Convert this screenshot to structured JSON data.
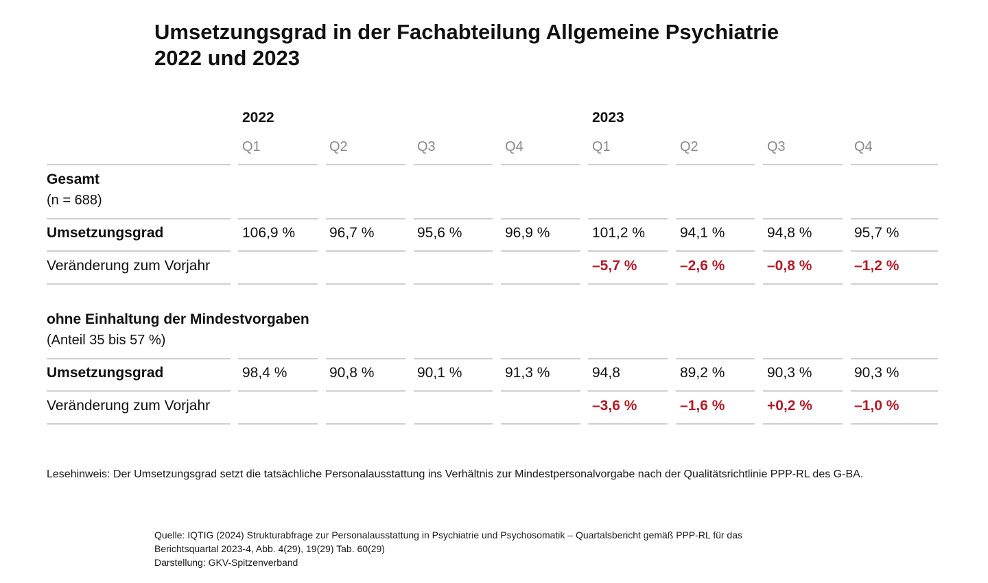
{
  "title_lines": [
    "Umsetzungsgrad in der Fachabteilung Allgemeine Psychiatrie",
    "2022 und 2023"
  ],
  "colors": {
    "negative": "#b01c28",
    "text": "#111111",
    "quarter": "#8a8a8a",
    "rule": "#cfcfcf"
  },
  "chart_data": {
    "type": "table",
    "years": [
      "2022",
      "2023"
    ],
    "quarters": [
      "Q1",
      "Q2",
      "Q3",
      "Q4",
      "Q1",
      "Q2",
      "Q3",
      "Q4"
    ],
    "sections": [
      {
        "title": "Gesamt",
        "subtitle": "(n = 688)",
        "rows": [
          {
            "label": "Umsetzungsgrad",
            "bold": true,
            "values": [
              "106,9 %",
              "96,7 %",
              "95,6 %",
              "96,9 %",
              "101,2 %",
              "94,1 %",
              "94,8 %",
              "95,7 %"
            ]
          },
          {
            "label": "Veränderung zum Vorjahr",
            "bold": false,
            "values": [
              "",
              "",
              "",
              "",
              "–5,7 %",
              "–2,6 %",
              "–0,8 %",
              "–1,2 %"
            ]
          }
        ]
      },
      {
        "title": "ohne Einhaltung der Mindestvorgaben",
        "subtitle": "(Anteil 35 bis 57 %)",
        "rows": [
          {
            "label": "Umsetzungsgrad",
            "bold": true,
            "values": [
              "98,4 %",
              "90,8 %",
              "90,1 %",
              "91,3 %",
              "94,8",
              "89,2 %",
              "90,3 %",
              "90,3 %"
            ]
          },
          {
            "label": "Veränderung zum Vorjahr",
            "bold": false,
            "values": [
              "",
              "",
              "",
              "",
              "–3,6 %",
              "–1,6 %",
              "+0,2 %",
              "–1,0 %"
            ]
          }
        ]
      }
    ]
  },
  "note": "Lesehinweis: Der Umsetzungsgrad setzt die tatsächliche Personalausstattung ins Verhältnis zur Mindestpersonalvorgabe nach der Qualitätsrichtlinie PPP-RL des G-BA.",
  "source_lines": [
    "Quelle: IQTIG (2024) Strukturabfrage zur Personalausstattung in Psychiatrie und Psychosomatik – Quartalsbericht gemäß PPP-RL für das",
    "Berichtsquartal 2023-4, Abb. 4(29), 19(29) Tab. 60(29)",
    "Darstellung: GKV-Spitzenverband"
  ]
}
